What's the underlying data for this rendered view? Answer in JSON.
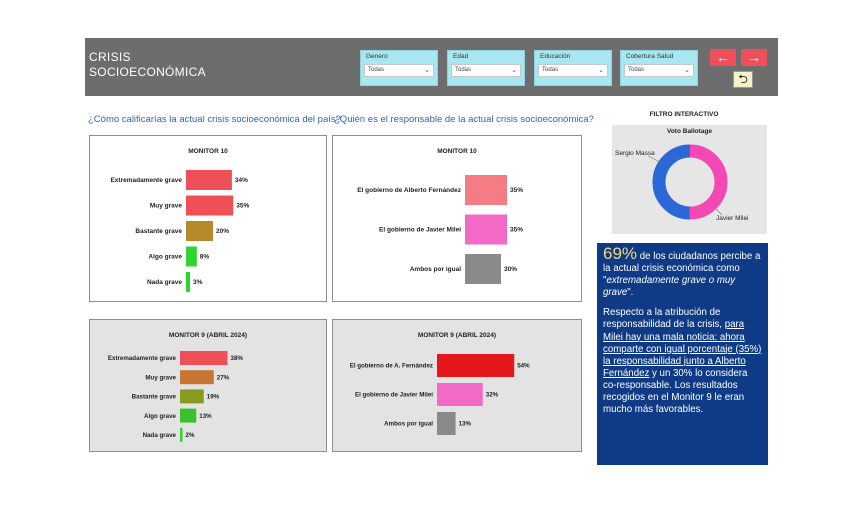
{
  "header": {
    "title_line1": "CRISIS",
    "title_line2": "SOCIOECONÓMICA",
    "filters": [
      {
        "label": "Genero",
        "value": "Todas"
      },
      {
        "label": "Edad",
        "value": "Todas"
      },
      {
        "label": "Educación",
        "value": "Todas"
      },
      {
        "label": "Cobertura Salud",
        "value": "Todas"
      }
    ],
    "nav_back": "←",
    "nav_forward": "→",
    "reset_icon": "⮌"
  },
  "questions": {
    "q1": "¿Cómo calificarías la actual crisis socioeconómica del país?",
    "q2": "¿Quién es el responsable de la actual crisis socioeconómica?"
  },
  "chart_data": [
    {
      "type": "bar",
      "title": "MONITOR 10",
      "categories": [
        "Extremadamente grave",
        "Muy grave",
        "Bastante grave",
        "Algo grave",
        "Nada grave"
      ],
      "values": [
        34,
        35,
        20,
        8,
        3
      ],
      "value_labels": [
        "34%",
        "35%",
        "20%",
        "8%",
        "3%"
      ],
      "colors": [
        "#ef5058",
        "#ef5058",
        "#b48a2a",
        "#2fd52f",
        "#2fd52f"
      ]
    },
    {
      "type": "bar",
      "title": "MONITOR 10",
      "categories": [
        "El gobierno de Alberto Fernández",
        "El gobierno de Javier Milei",
        "Ambos por igual"
      ],
      "values": [
        35,
        35,
        30
      ],
      "value_labels": [
        "35%",
        "35%",
        "30%"
      ],
      "colors": [
        "#f57c84",
        "#f36ac6",
        "#8a8a8a"
      ]
    },
    {
      "type": "bar",
      "title": "MONITOR 9 (ABRIL 2024)",
      "categories": [
        "Extremadamente grave",
        "Muy grave",
        "Bastante grave",
        "Algo grave",
        "Nada grave"
      ],
      "values": [
        38,
        27,
        19,
        13,
        2
      ],
      "value_labels": [
        "38%",
        "27%",
        "19%",
        "13%",
        "2%"
      ],
      "colors": [
        "#ef5058",
        "#c87533",
        "#8a9a1e",
        "#39c22b",
        "#2fd52f"
      ]
    },
    {
      "type": "bar",
      "title": "MONITOR 9 (ABRIL 2024)",
      "categories": [
        "El gobierno de A. Fernández",
        "El gobierno de Javier Milei",
        "Ambos por igual"
      ],
      "values": [
        54,
        32,
        13
      ],
      "value_labels": [
        "54%",
        "32%",
        "13%"
      ],
      "colors": [
        "#e6161d",
        "#f36ac6",
        "#8a8a8a"
      ]
    },
    {
      "type": "pie",
      "title": "Voto Ballotage",
      "categories": [
        "Sergio Massa",
        "Javier Milei"
      ],
      "values": [
        50,
        50
      ],
      "colors": [
        "#2b67d6",
        "#f449b4"
      ]
    }
  ],
  "sidebar": {
    "filter_heading": "FILTRO INTERACTIVO",
    "text_big": "69%",
    "text_p1_a": " de los ciudadanos percibe a la actual crisis económica como \"",
    "text_p1_italic": "extremadamente grave o muy grave",
    "text_p1_b": "\".",
    "text_p2_a": "Respecto a la atribución de responsabilidad de la crisis, ",
    "text_p2_u": "para Milei hay una mala noticia: ahora comparte con igual porcentaje (35%) la responsabilidad junto a Alberto Fernández",
    "text_p2_b": " y un 30% lo considera co-responsable. Los resultados recogidos en el Monitor 9 le eran mucho más favorables."
  }
}
